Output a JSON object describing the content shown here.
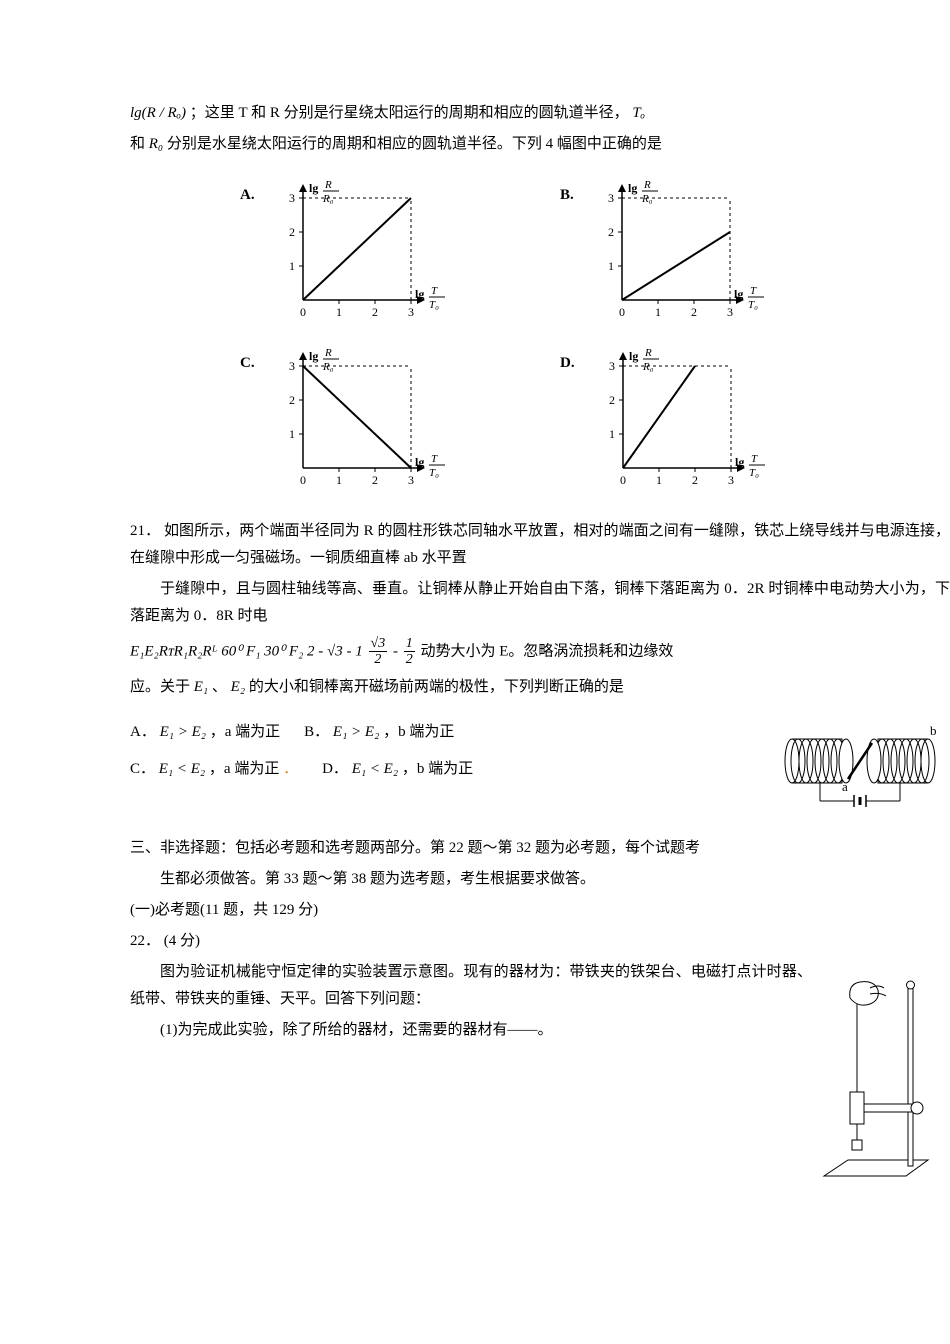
{
  "page": {
    "text_color": "#000000",
    "background_color": "#ffffff",
    "base_fontsize": 15,
    "line_height": 1.8
  },
  "intro": {
    "lg_expr": "lg(R / Rₒ)",
    "after_lg": "；这里 T 和 R 分别是行星绕太阳运行的周期和相应的圆轨道半径，",
    "T0": "Tₒ",
    "para2_pre": "和",
    "R0": "R₀",
    "para2_post": "分别是水星绕太阳运行的周期和相应的圆轨道半径。下列 4 幅图中正确的是"
  },
  "chart_common": {
    "type": "line-on-grid",
    "axis_color": "#000000",
    "x_ticks": [
      0,
      1,
      2,
      3
    ],
    "y_ticks": [
      0,
      1,
      2,
      3
    ],
    "x_label": "lg T/T₀",
    "y_label": "lg R/R₀",
    "label_fontsize": 12,
    "tick_fontsize": 12
  },
  "charts": {
    "A": {
      "label": "A.",
      "line_p1": [
        0,
        0
      ],
      "line_p2": [
        3,
        3
      ]
    },
    "B": {
      "label": "B.",
      "line_p1": [
        0,
        0
      ],
      "line_p2": [
        3,
        2
      ]
    },
    "C": {
      "label": "C.",
      "line_p1": [
        3,
        0
      ],
      "line_p2": [
        0,
        3
      ]
    },
    "D": {
      "label": "D.",
      "line_p1": [
        0,
        0
      ],
      "line_p2": [
        2,
        3
      ]
    }
  },
  "q21": {
    "number": "21．",
    "para1": "如图所示，两个端面半径同为 R 的圆柱形铁芯同轴水平放置，相对的端面之间有一缝隙，铁芯上绕导线并与电源连接，在缝隙中形成一匀强磁场。一铜质细直棒 ab 水平置",
    "para2_pre": "于缝隙中，且与圆柱轴线等高、垂直。让铜棒从静止开始自由下落，铜棒下落距离为 0．2R 时铜棒中电动势大小为，下落距离为 0．8R 时电",
    "math_seq": "E₁E₂RᴛR₁R₂Rᴸ 60⁰ F₁ 30⁰ F₂ 2 - √3 - 1",
    "frac1_n": "√3",
    "frac1_d": "2",
    "frac_minus": "-",
    "frac2_n": "1",
    "frac2_d": "2",
    "para3_tail": "动势大小为 E。忽略涡流损耗和边缘效",
    "para4_pre": "应。关于",
    "E1": "E₁",
    "sep1": "、",
    "E2": "E₂",
    "para4_post": "的大小和铜棒离开磁场前两端的极性，下列判断正确的是",
    "options": {
      "A": {
        "label": "A．",
        "rel": "E₁ > E₂",
        "tail": "，a 端为正"
      },
      "B": {
        "label": "B．",
        "rel": "E₁ > E₂",
        "tail": "，b 端为正"
      },
      "C": {
        "label": "C．",
        "rel": "E₁ < E₂",
        "tail": "，a 端为正",
        "dot": "．"
      },
      "D": {
        "label": "D．",
        "rel": "E₁ < E₂",
        "tail": "，b 端为正"
      }
    },
    "figure": {
      "type": "coil-gap-rod",
      "label_a": "a",
      "label_b": "b",
      "stroke": "#000000",
      "fill": "#ffffff",
      "rod_color": "#000000"
    }
  },
  "section3": {
    "heading": "三、非选择题：包括必考题和选考题两部分。第 22 题～第 32 题为必考题，每个试题考",
    "heading2_indent": "生都必须做答。第 33 题～第 38 题为选考题，考生根据要求做答。",
    "sub": "(一)必考题(11 题，共 129 分)"
  },
  "q22": {
    "number": "22．",
    "score": "(4 分)",
    "para1_indent": "图为验证机械能守恒定律的实验装置示意图。现有的器材为：带铁夹的铁架台、电磁打点计时器、纸带、带铁夹的重锤、天平。回答下列问题：",
    "item1": "(1)为完成此实验，除了所给的器材，还需要的器材有——。",
    "figure": {
      "type": "stand-timer",
      "stroke": "#000000"
    }
  }
}
